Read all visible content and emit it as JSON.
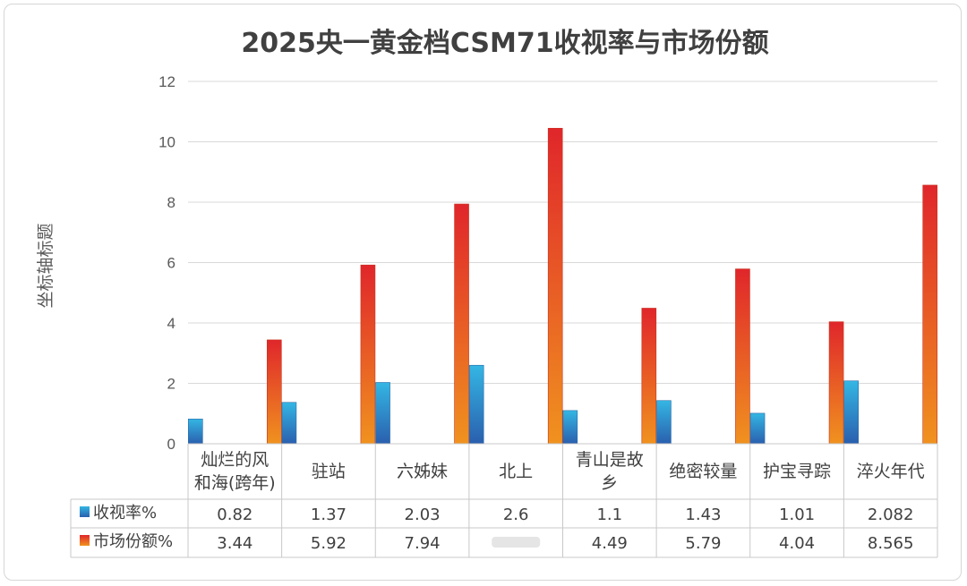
{
  "chart_data": {
    "type": "bar",
    "title": "2025央一黄金档CSM71收视率与市场份额",
    "ylabel": "坐标轴标题",
    "ylim": [
      0,
      12
    ],
    "yticks": [
      0,
      2,
      4,
      6,
      8,
      10,
      12
    ],
    "grid": true,
    "legend": "table-bottom",
    "categories": [
      "灿烂的风和海(跨年)",
      "驻站",
      "六姊妹",
      "北上",
      "青山是故乡",
      "绝密较量",
      "护宝寻踪",
      "淬火年代"
    ],
    "category_lines": [
      [
        "灿烂的风",
        "和海(跨年)"
      ],
      [
        "驻站"
      ],
      [
        "六姊妹"
      ],
      [
        "北上"
      ],
      [
        "青山是故",
        "乡"
      ],
      [
        "绝密较量"
      ],
      [
        "护宝寻踪"
      ],
      [
        "淬火年代"
      ]
    ],
    "series": [
      {
        "name": "收视率%",
        "color": "#2e8bc9",
        "values": [
          0.82,
          1.37,
          2.03,
          2.6,
          1.1,
          1.43,
          1.01,
          2.082
        ],
        "labels": [
          "0.82",
          "1.37",
          "2.03",
          "2.6",
          "1.1",
          "1.43",
          "1.01",
          "2.082"
        ]
      },
      {
        "name": "市场份额%",
        "color": "#e8432a",
        "values": [
          3.44,
          5.92,
          7.94,
          10.45,
          4.49,
          5.79,
          4.04,
          8.565
        ],
        "labels": [
          "3.44",
          "5.92",
          "7.94",
          "",
          "4.49",
          "5.79",
          "4.04",
          "8.565"
        ]
      }
    ]
  }
}
